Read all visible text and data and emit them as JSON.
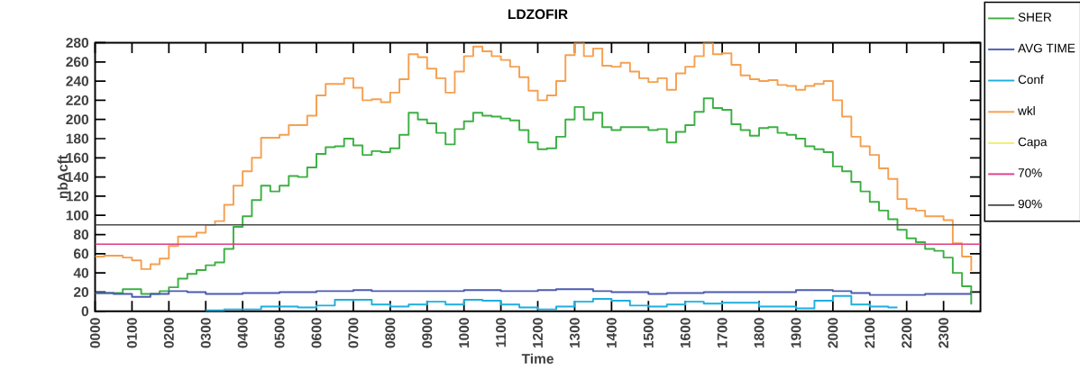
{
  "chart_data": {
    "type": "step",
    "title": "LDZOFIR",
    "xlabel": "Time",
    "ylabel": "nbAcft",
    "categories": [
      "0000",
      null,
      null,
      null,
      "0100",
      null,
      null,
      null,
      "0200",
      null,
      null,
      null,
      "0300",
      null,
      null,
      null,
      "0400",
      null,
      null,
      null,
      "0500",
      null,
      null,
      null,
      "0600",
      null,
      null,
      null,
      "0700",
      null,
      null,
      null,
      "0800",
      null,
      null,
      null,
      "0900",
      null,
      null,
      null,
      "1000",
      null,
      null,
      null,
      "1100",
      null,
      null,
      null,
      "1200",
      null,
      null,
      null,
      "1300",
      null,
      null,
      null,
      "1400",
      null,
      null,
      null,
      "1500",
      null,
      null,
      null,
      "1600",
      null,
      null,
      null,
      "1700",
      null,
      null,
      null,
      "1800",
      null,
      null,
      null,
      "1900",
      null,
      null,
      null,
      "2000",
      null,
      null,
      null,
      "2100",
      null,
      null,
      null,
      "2200",
      null,
      null,
      null,
      "2300",
      null,
      null,
      null
    ],
    "series": [
      {
        "name": "SHER",
        "color": "#3cb043",
        "values": [
          19,
          19,
          19,
          23,
          23,
          18,
          18,
          21,
          25,
          34,
          39,
          43,
          48,
          51,
          65,
          88,
          99,
          116,
          131,
          125,
          131,
          141,
          140,
          150,
          164,
          171,
          172,
          180,
          173,
          163,
          167,
          166,
          170,
          184,
          207,
          200,
          196,
          186,
          174,
          190,
          198,
          207,
          204,
          203,
          201,
          199,
          189,
          176,
          169,
          170,
          182,
          200,
          213,
          200,
          207,
          192,
          189,
          192,
          192,
          192,
          189,
          190,
          176,
          187,
          194,
          208,
          222,
          212,
          210,
          195,
          189,
          183,
          191,
          192,
          186,
          184,
          180,
          172,
          169,
          166,
          151,
          146,
          135,
          125,
          114,
          105,
          96,
          85,
          76,
          72,
          65,
          63,
          56,
          40,
          26,
          7
        ]
      },
      {
        "name": "AVG TIME",
        "color": "#4a5bb0",
        "values": [
          19,
          19,
          18,
          18,
          15,
          15,
          18,
          18,
          21,
          21,
          20,
          20,
          18,
          18,
          18,
          18,
          19,
          19,
          19,
          19,
          20,
          20,
          20,
          20,
          21,
          21,
          21,
          21,
          22,
          22,
          21,
          21,
          21,
          21,
          21,
          21,
          21,
          21,
          21,
          21,
          22,
          22,
          22,
          22,
          21,
          21,
          21,
          21,
          22,
          22,
          23,
          23,
          23,
          23,
          21,
          21,
          20,
          20,
          20,
          20,
          18,
          18,
          19,
          19,
          19,
          19,
          20,
          20,
          20,
          20,
          20,
          20,
          20,
          20,
          20,
          20,
          22,
          22,
          22,
          22,
          21,
          21,
          19,
          19,
          17,
          17,
          17,
          17,
          17,
          17,
          18,
          18,
          18,
          18,
          18,
          18
        ]
      },
      {
        "name": "Conf",
        "color": "#1eaee0",
        "values": [
          null,
          null,
          null,
          null,
          null,
          null,
          null,
          null,
          null,
          null,
          null,
          null,
          1,
          1,
          2,
          2,
          2,
          2,
          5,
          5,
          5,
          5,
          4,
          4,
          6,
          6,
          12,
          12,
          12,
          12,
          7,
          7,
          5,
          5,
          7,
          7,
          10,
          10,
          7,
          7,
          12,
          12,
          11,
          11,
          7,
          7,
          4,
          4,
          2,
          2,
          5,
          5,
          10,
          10,
          13,
          13,
          11,
          11,
          6,
          6,
          5,
          5,
          7,
          7,
          10,
          10,
          8,
          8,
          9,
          9,
          9,
          9,
          5,
          5,
          5,
          5,
          3,
          3,
          11,
          11,
          16,
          16,
          7,
          7,
          5,
          5,
          4,
          4,
          null,
          null,
          null,
          null,
          null,
          null,
          null,
          null
        ]
      },
      {
        "name": "wkl",
        "color": "#f5a050",
        "values": [
          57,
          58,
          58,
          56,
          53,
          44,
          49,
          55,
          68,
          78,
          78,
          82,
          90,
          94,
          111,
          131,
          146,
          160,
          181,
          181,
          184,
          194,
          194,
          204,
          225,
          237,
          237,
          243,
          233,
          220,
          221,
          218,
          228,
          242,
          268,
          265,
          253,
          243,
          228,
          250,
          266,
          276,
          271,
          266,
          262,
          255,
          244,
          230,
          220,
          225,
          240,
          267,
          280,
          266,
          274,
          256,
          255,
          259,
          250,
          243,
          239,
          243,
          231,
          248,
          255,
          266,
          280,
          268,
          269,
          257,
          246,
          242,
          240,
          241,
          236,
          235,
          231,
          235,
          237,
          240,
          220,
          203,
          182,
          172,
          163,
          149,
          138,
          117,
          107,
          105,
          99,
          99,
          95,
          71,
          57,
          42
        ]
      },
      {
        "name": "Capa",
        "color": "#f0f070",
        "values": [
          null,
          null,
          null,
          null,
          null,
          null,
          null,
          null,
          null,
          null,
          null,
          null,
          null,
          null,
          null,
          null,
          null,
          null,
          null,
          null,
          null,
          null,
          null,
          null,
          null,
          null,
          null,
          null,
          null,
          null,
          null,
          null,
          null,
          null,
          null,
          null,
          null,
          null,
          null,
          null,
          null,
          null,
          null,
          null,
          null,
          null,
          null,
          null,
          null,
          null,
          null,
          null,
          null,
          null,
          null,
          null,
          null,
          null,
          null,
          null,
          null,
          null,
          null,
          null,
          null,
          null,
          null,
          null,
          null,
          null,
          null,
          null,
          null,
          null,
          null,
          null,
          null,
          null,
          null,
          null,
          null,
          null,
          null,
          null,
          null,
          null,
          null,
          null,
          null,
          null,
          null,
          null,
          null,
          null,
          null,
          null
        ]
      }
    ],
    "ref_lines": [
      {
        "axis": "y",
        "value": 70,
        "label": "70%",
        "color": "#e0408a"
      },
      {
        "axis": "y",
        "value": 90,
        "label": "90%",
        "color": "#505050"
      }
    ],
    "ylim": [
      0,
      280
    ],
    "yticks": [
      0,
      20,
      40,
      60,
      80,
      100,
      120,
      140,
      160,
      180,
      200,
      220,
      240,
      260,
      280
    ],
    "legend": "right"
  }
}
